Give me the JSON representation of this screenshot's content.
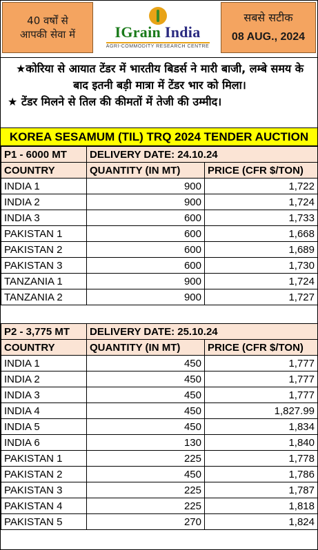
{
  "header": {
    "left_line1": "40 वर्षों से",
    "left_line2": "आपकी सेवा में",
    "logo_name_a": "IGrain",
    "logo_name_b": "India",
    "logo_tagline": "AGRI-COMMODITY RESEARCH CENTRE",
    "right_line1": "सबसे सटीक",
    "date": "08 AUG., 2024"
  },
  "news": {
    "item1": "कोरिया से आयात टेंडर में भारतीय बिडर्स ने मारी बाजी, लम्बे समय के बाद इतनी बड़ी मात्रा में टेंडर भार को मिला।",
    "item2": "टेंडर मिलने से तिल की कीमतों में तेजी की उम्मीद।"
  },
  "banner": "KOREA SESAMUM (TIL) TRQ 2024 TENDER AUCTION",
  "sections": [
    {
      "title": "P1  - 6000 MT",
      "delivery": "DELIVERY DATE: 24.10.24",
      "col_country": "COUNTRY",
      "col_qty": "QUANTITY (IN MT)",
      "col_price": "PRICE (CFR $/TON)",
      "rows": [
        {
          "country": "INDIA 1",
          "qty": "900",
          "price": "1,722"
        },
        {
          "country": "INDIA 2",
          "qty": "900",
          "price": "1,724"
        },
        {
          "country": "INDIA 3",
          "qty": "600",
          "price": "1,733"
        },
        {
          "country": "PAKISTAN 1",
          "qty": "600",
          "price": "1,668"
        },
        {
          "country": "PAKISTAN 2",
          "qty": "600",
          "price": "1,689"
        },
        {
          "country": "PAKISTAN 3",
          "qty": "600",
          "price": "1,730"
        },
        {
          "country": "TANZANIA 1",
          "qty": "900",
          "price": "1,724"
        },
        {
          "country": "TANZANIA 2",
          "qty": "900",
          "price": "1,727"
        }
      ]
    },
    {
      "title": "P2  - 3,775 MT",
      "delivery": "DELIVERY DATE: 25.10.24",
      "col_country": "COUNTRY",
      "col_qty": "QUANTITY (IN MT)",
      "col_price": "PRICE (CFR $/TON)",
      "rows": [
        {
          "country": "INDIA 1",
          "qty": "450",
          "price": "1,777"
        },
        {
          "country": "INDIA 2",
          "qty": "450",
          "price": "1,777"
        },
        {
          "country": "INDIA 3",
          "qty": "450",
          "price": "1,777"
        },
        {
          "country": "INDIA 4",
          "qty": "450",
          "price": "1,827.99"
        },
        {
          "country": "INDIA 5",
          "qty": "450",
          "price": "1,834"
        },
        {
          "country": "INDIA 6",
          "qty": "130",
          "price": "1,840"
        },
        {
          "country": "PAKISTAN 1",
          "qty": "225",
          "price": "1,778"
        },
        {
          "country": "PAKISTAN 2",
          "qty": "450",
          "price": "1,786"
        },
        {
          "country": "PAKISTAN 3",
          "qty": "225",
          "price": "1,787"
        },
        {
          "country": "PAKISTAN 4",
          "qty": "225",
          "price": "1,818"
        },
        {
          "country": "PAKISTAN 5",
          "qty": "270",
          "price": "1,824"
        }
      ]
    }
  ]
}
